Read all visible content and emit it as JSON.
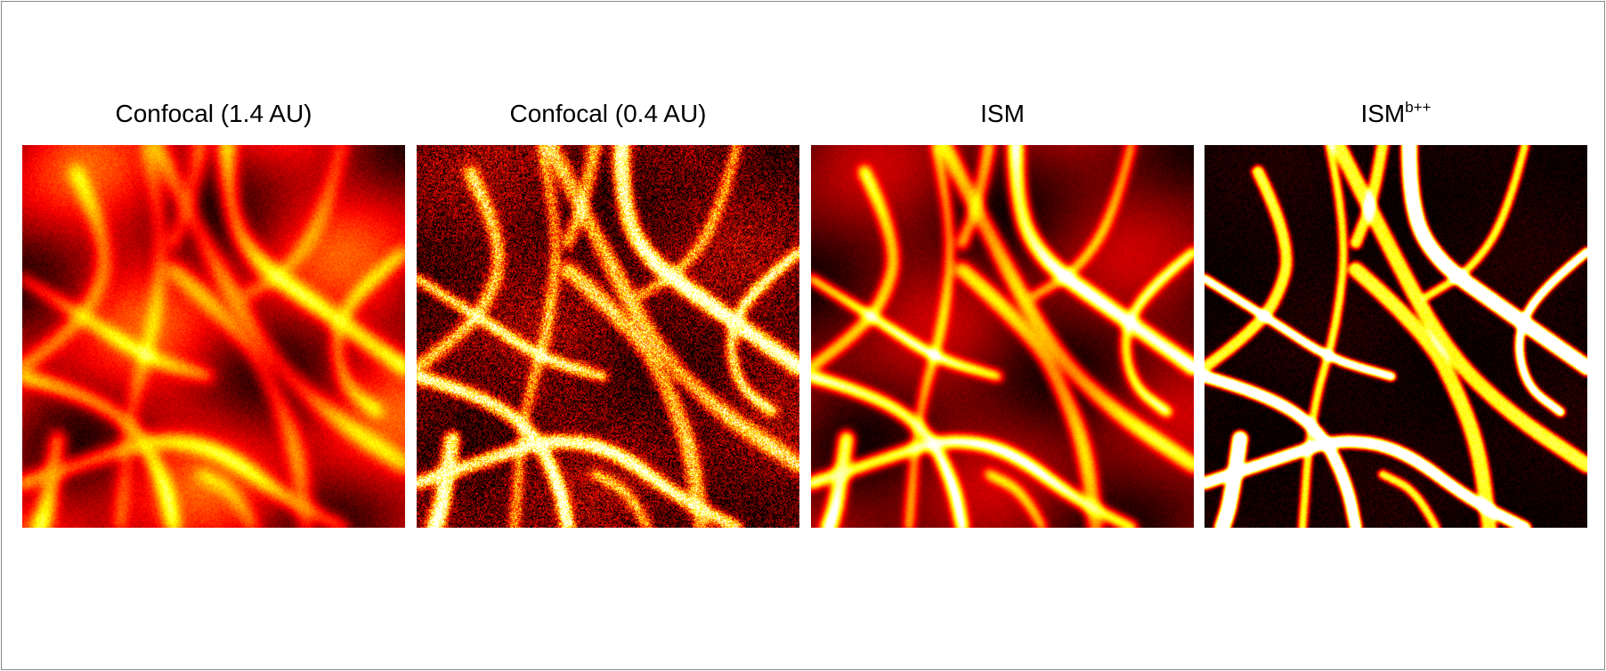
{
  "figure": {
    "panels": [
      {
        "id": "confocal-1-4",
        "title": "Confocal (1.4 AU)",
        "title_sup": "",
        "colormap": "hot",
        "blur": 7,
        "noise": 0.1,
        "background_level": 0.55,
        "filament_gain": 0.55
      },
      {
        "id": "confocal-0-4",
        "title": "Confocal (0.4 AU)",
        "title_sup": "",
        "colormap": "hot",
        "blur": 4,
        "noise": 0.55,
        "background_level": 0.25,
        "filament_gain": 0.95
      },
      {
        "id": "ism",
        "title": "ISM",
        "title_sup": "",
        "colormap": "hot",
        "blur": 4.5,
        "noise": 0.06,
        "background_level": 0.32,
        "filament_gain": 0.85
      },
      {
        "id": "ism-bpp",
        "title": "ISM",
        "title_sup": "b++",
        "colormap": "hot",
        "blur": 2,
        "noise": 0.1,
        "background_level": 0.05,
        "filament_gain": 1.15
      }
    ]
  }
}
